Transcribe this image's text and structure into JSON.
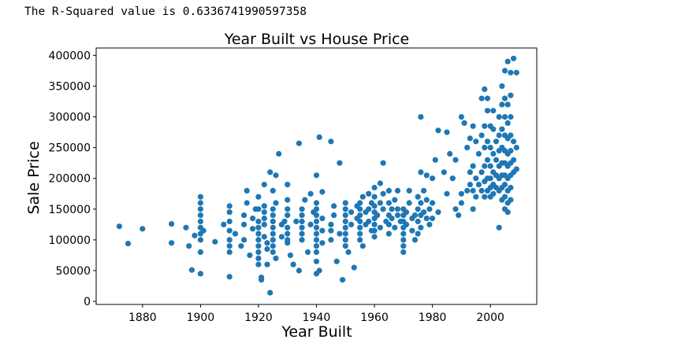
{
  "output": {
    "r_squared_text": "The R-Squared value is 0.6336741990597358"
  },
  "colors": {
    "point": "#1f77b4",
    "axis": "#000000"
  },
  "chart_data": {
    "type": "scatter",
    "title": "Year Built vs House Price",
    "xlabel": "Year Built",
    "ylabel": "Sale Price",
    "xlim": [
      1864,
      2016
    ],
    "ylim": [
      -5000,
      412000
    ],
    "xticks": [
      1880,
      1900,
      1920,
      1940,
      1960,
      1980,
      2000
    ],
    "yticks": [
      0,
      50000,
      100000,
      150000,
      200000,
      250000,
      300000,
      350000,
      400000
    ],
    "grid": false,
    "legend": "none",
    "points": [
      [
        1872,
        122000
      ],
      [
        1875,
        94000
      ],
      [
        1880,
        118000
      ],
      [
        1890,
        126000
      ],
      [
        1890,
        95000
      ],
      [
        1895,
        120000
      ],
      [
        1896,
        90000
      ],
      [
        1898,
        107000
      ],
      [
        1900,
        170000
      ],
      [
        1900,
        160000
      ],
      [
        1900,
        150000
      ],
      [
        1900,
        140000
      ],
      [
        1900,
        130000
      ],
      [
        1900,
        120000
      ],
      [
        1900,
        110000
      ],
      [
        1900,
        100000
      ],
      [
        1900,
        80000
      ],
      [
        1900,
        45000
      ],
      [
        1897,
        51000
      ],
      [
        1901,
        115000
      ],
      [
        1905,
        97000
      ],
      [
        1908,
        125000
      ],
      [
        1910,
        155000
      ],
      [
        1910,
        145000
      ],
      [
        1910,
        130000
      ],
      [
        1910,
        115000
      ],
      [
        1910,
        100000
      ],
      [
        1910,
        90000
      ],
      [
        1910,
        80000
      ],
      [
        1910,
        40000
      ],
      [
        1912,
        110000
      ],
      [
        1914,
        90000
      ],
      [
        1915,
        125000
      ],
      [
        1915,
        140000
      ],
      [
        1915,
        100000
      ],
      [
        1916,
        180000
      ],
      [
        1916,
        160000
      ],
      [
        1917,
        75000
      ],
      [
        1918,
        118000
      ],
      [
        1918,
        135000
      ],
      [
        1919,
        150000
      ],
      [
        1920,
        170000
      ],
      [
        1920,
        150000
      ],
      [
        1920,
        130000
      ],
      [
        1920,
        120000
      ],
      [
        1920,
        110000
      ],
      [
        1920,
        100000
      ],
      [
        1920,
        90000
      ],
      [
        1920,
        80000
      ],
      [
        1920,
        70000
      ],
      [
        1920,
        60000
      ],
      [
        1921,
        39000
      ],
      [
        1921,
        35000
      ],
      [
        1922,
        190000
      ],
      [
        1922,
        155000
      ],
      [
        1922,
        145000
      ],
      [
        1922,
        135000
      ],
      [
        1922,
        125000
      ],
      [
        1922,
        105000
      ],
      [
        1923,
        95000
      ],
      [
        1923,
        85000
      ],
      [
        1923,
        60000
      ],
      [
        1924,
        14000
      ],
      [
        1924,
        210000
      ],
      [
        1925,
        180000
      ],
      [
        1925,
        150000
      ],
      [
        1925,
        140000
      ],
      [
        1925,
        130000
      ],
      [
        1925,
        120000
      ],
      [
        1925,
        110000
      ],
      [
        1925,
        100000
      ],
      [
        1925,
        90000
      ],
      [
        1925,
        80000
      ],
      [
        1926,
        205000
      ],
      [
        1926,
        160000
      ],
      [
        1926,
        70000
      ],
      [
        1927,
        240000
      ],
      [
        1928,
        125000
      ],
      [
        1928,
        105000
      ],
      [
        1929,
        130000
      ],
      [
        1930,
        190000
      ],
      [
        1930,
        165000
      ],
      [
        1930,
        150000
      ],
      [
        1930,
        140000
      ],
      [
        1930,
        120000
      ],
      [
        1930,
        110000
      ],
      [
        1930,
        100000
      ],
      [
        1930,
        95000
      ],
      [
        1931,
        75000
      ],
      [
        1932,
        60000
      ],
      [
        1933,
        130000
      ],
      [
        1934,
        257000
      ],
      [
        1934,
        50000
      ],
      [
        1935,
        150000
      ],
      [
        1935,
        140000
      ],
      [
        1935,
        130000
      ],
      [
        1935,
        120000
      ],
      [
        1935,
        110000
      ],
      [
        1935,
        100000
      ],
      [
        1936,
        165000
      ],
      [
        1937,
        80000
      ],
      [
        1938,
        175000
      ],
      [
        1938,
        125000
      ],
      [
        1939,
        145000
      ],
      [
        1940,
        205000
      ],
      [
        1940,
        160000
      ],
      [
        1940,
        150000
      ],
      [
        1940,
        140000
      ],
      [
        1940,
        130000
      ],
      [
        1940,
        120000
      ],
      [
        1940,
        110000
      ],
      [
        1940,
        100000
      ],
      [
        1940,
        90000
      ],
      [
        1940,
        80000
      ],
      [
        1940,
        65000
      ],
      [
        1940,
        45000
      ],
      [
        1941,
        267000
      ],
      [
        1941,
        50000
      ],
      [
        1942,
        178000
      ],
      [
        1942,
        135000
      ],
      [
        1942,
        115000
      ],
      [
        1942,
        95000
      ],
      [
        1945,
        260000
      ],
      [
        1945,
        125000
      ],
      [
        1945,
        115000
      ],
      [
        1945,
        100000
      ],
      [
        1946,
        155000
      ],
      [
        1946,
        140000
      ],
      [
        1947,
        65000
      ],
      [
        1948,
        225000
      ],
      [
        1948,
        110000
      ],
      [
        1949,
        35000
      ],
      [
        1950,
        160000
      ],
      [
        1950,
        150000
      ],
      [
        1950,
        140000
      ],
      [
        1950,
        130000
      ],
      [
        1950,
        120000
      ],
      [
        1950,
        110000
      ],
      [
        1950,
        100000
      ],
      [
        1950,
        90000
      ],
      [
        1951,
        80000
      ],
      [
        1952,
        145000
      ],
      [
        1952,
        125000
      ],
      [
        1953,
        55000
      ],
      [
        1954,
        155000
      ],
      [
        1954,
        135000
      ],
      [
        1955,
        160000
      ],
      [
        1955,
        150000
      ],
      [
        1955,
        140000
      ],
      [
        1955,
        130000
      ],
      [
        1955,
        120000
      ],
      [
        1955,
        110000
      ],
      [
        1955,
        100000
      ],
      [
        1956,
        170000
      ],
      [
        1956,
        90000
      ],
      [
        1957,
        145000
      ],
      [
        1957,
        125000
      ],
      [
        1958,
        175000
      ],
      [
        1958,
        150000
      ],
      [
        1958,
        130000
      ],
      [
        1959,
        160000
      ],
      [
        1959,
        115000
      ],
      [
        1960,
        185000
      ],
      [
        1960,
        170000
      ],
      [
        1960,
        155000
      ],
      [
        1960,
        145000
      ],
      [
        1960,
        135000
      ],
      [
        1960,
        125000
      ],
      [
        1960,
        115000
      ],
      [
        1960,
        105000
      ],
      [
        1961,
        140000
      ],
      [
        1962,
        192000
      ],
      [
        1962,
        160000
      ],
      [
        1962,
        120000
      ],
      [
        1963,
        225000
      ],
      [
        1963,
        175000
      ],
      [
        1963,
        150000
      ],
      [
        1964,
        130000
      ],
      [
        1965,
        180000
      ],
      [
        1965,
        160000
      ],
      [
        1965,
        140000
      ],
      [
        1965,
        125000
      ],
      [
        1965,
        110000
      ],
      [
        1966,
        150000
      ],
      [
        1966,
        135000
      ],
      [
        1967,
        165000
      ],
      [
        1967,
        120000
      ],
      [
        1968,
        180000
      ],
      [
        1968,
        150000
      ],
      [
        1968,
        140000
      ],
      [
        1969,
        130000
      ],
      [
        1970,
        150000
      ],
      [
        1970,
        140000
      ],
      [
        1970,
        130000
      ],
      [
        1970,
        120000
      ],
      [
        1970,
        110000
      ],
      [
        1970,
        100000
      ],
      [
        1970,
        90000
      ],
      [
        1970,
        80000
      ],
      [
        1971,
        145000
      ],
      [
        1971,
        125000
      ],
      [
        1972,
        180000
      ],
      [
        1972,
        160000
      ],
      [
        1973,
        135000
      ],
      [
        1973,
        115000
      ],
      [
        1974,
        140000
      ],
      [
        1974,
        100000
      ],
      [
        1975,
        170000
      ],
      [
        1975,
        150000
      ],
      [
        1975,
        130000
      ],
      [
        1975,
        110000
      ],
      [
        1976,
        300000
      ],
      [
        1976,
        210000
      ],
      [
        1976,
        160000
      ],
      [
        1976,
        140000
      ],
      [
        1976,
        120000
      ],
      [
        1977,
        145000
      ],
      [
        1977,
        180000
      ],
      [
        1978,
        205000
      ],
      [
        1978,
        165000
      ],
      [
        1978,
        135000
      ],
      [
        1979,
        125000
      ],
      [
        1979,
        150000
      ],
      [
        1980,
        200000
      ],
      [
        1980,
        160000
      ],
      [
        1980,
        135000
      ],
      [
        1981,
        230000
      ],
      [
        1982,
        278000
      ],
      [
        1982,
        145000
      ],
      [
        1984,
        210000
      ],
      [
        1985,
        175000
      ],
      [
        1985,
        275000
      ],
      [
        1986,
        240000
      ],
      [
        1987,
        200000
      ],
      [
        1988,
        230000
      ],
      [
        1988,
        150000
      ],
      [
        1989,
        140000
      ],
      [
        1990,
        300000
      ],
      [
        1990,
        175000
      ],
      [
        1990,
        160000
      ],
      [
        1991,
        290000
      ],
      [
        1992,
        250000
      ],
      [
        1992,
        180000
      ],
      [
        1993,
        265000
      ],
      [
        1993,
        210000
      ],
      [
        1993,
        190000
      ],
      [
        1994,
        285000
      ],
      [
        1994,
        220000
      ],
      [
        1994,
        180000
      ],
      [
        1994,
        150000
      ],
      [
        1995,
        260000
      ],
      [
        1995,
        200000
      ],
      [
        1995,
        170000
      ],
      [
        1996,
        190000
      ],
      [
        1996,
        240000
      ],
      [
        1997,
        330000
      ],
      [
        1997,
        270000
      ],
      [
        1997,
        210000
      ],
      [
        1997,
        180000
      ],
      [
        1998,
        345000
      ],
      [
        1998,
        285000
      ],
      [
        1998,
        250000
      ],
      [
        1998,
        220000
      ],
      [
        1998,
        195000
      ],
      [
        1998,
        170000
      ],
      [
        1999,
        330000
      ],
      [
        1999,
        310000
      ],
      [
        1999,
        260000
      ],
      [
        1999,
        230000
      ],
      [
        1999,
        200000
      ],
      [
        1999,
        180000
      ],
      [
        2000,
        285000
      ],
      [
        2000,
        250000
      ],
      [
        2000,
        220000
      ],
      [
        2000,
        200000
      ],
      [
        2000,
        185000
      ],
      [
        2000,
        170000
      ],
      [
        2001,
        310000
      ],
      [
        2001,
        280000
      ],
      [
        2001,
        240000
      ],
      [
        2001,
        210000
      ],
      [
        2001,
        190000
      ],
      [
        2001,
        175000
      ],
      [
        2002,
        260000
      ],
      [
        2002,
        230000
      ],
      [
        2002,
        205000
      ],
      [
        2002,
        185000
      ],
      [
        2003,
        300000
      ],
      [
        2003,
        270000
      ],
      [
        2003,
        245000
      ],
      [
        2003,
        220000
      ],
      [
        2003,
        200000
      ],
      [
        2003,
        180000
      ],
      [
        2003,
        120000
      ],
      [
        2004,
        350000
      ],
      [
        2004,
        320000
      ],
      [
        2004,
        280000
      ],
      [
        2004,
        250000
      ],
      [
        2004,
        225000
      ],
      [
        2004,
        205000
      ],
      [
        2004,
        185000
      ],
      [
        2004,
        165000
      ],
      [
        2005,
        375000
      ],
      [
        2005,
        330000
      ],
      [
        2005,
        300000
      ],
      [
        2005,
        270000
      ],
      [
        2005,
        245000
      ],
      [
        2005,
        225000
      ],
      [
        2005,
        205000
      ],
      [
        2005,
        190000
      ],
      [
        2005,
        170000
      ],
      [
        2005,
        150000
      ],
      [
        2006,
        390000
      ],
      [
        2006,
        320000
      ],
      [
        2006,
        290000
      ],
      [
        2006,
        265000
      ],
      [
        2006,
        240000
      ],
      [
        2006,
        220000
      ],
      [
        2006,
        200000
      ],
      [
        2006,
        180000
      ],
      [
        2006,
        160000
      ],
      [
        2006,
        145000
      ],
      [
        2007,
        372000
      ],
      [
        2007,
        335000
      ],
      [
        2007,
        300000
      ],
      [
        2007,
        270000
      ],
      [
        2007,
        245000
      ],
      [
        2007,
        225000
      ],
      [
        2007,
        205000
      ],
      [
        2007,
        185000
      ],
      [
        2007,
        165000
      ],
      [
        2008,
        395000
      ],
      [
        2008,
        260000
      ],
      [
        2008,
        230000
      ],
      [
        2008,
        210000
      ],
      [
        2009,
        372000
      ],
      [
        2009,
        250000
      ],
      [
        2009,
        215000
      ]
    ]
  }
}
